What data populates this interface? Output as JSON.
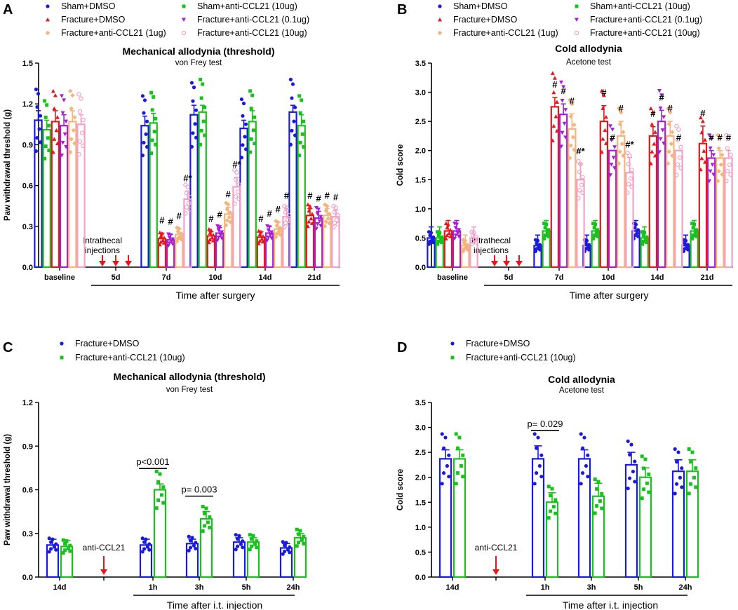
{
  "colors": {
    "sham_dmso": "#1a1adf",
    "fracture_dmso": "#e8151b",
    "sham_anti": "#18c21c",
    "fracture_anti_01": "#a51ed6",
    "fracture_anti_1": "#f5b47a",
    "fracture_anti_10": "#f2a0c8",
    "arrow": "#e8151b"
  },
  "chart_data": [
    {
      "panel": "A",
      "type": "bar",
      "title": "Mechanical allodynia (threshold)",
      "subtitle": "von Frey test",
      "ylabel": "Paw withdrawal threshold (g)",
      "xlabel": "Time after surgery",
      "ylim": [
        0,
        1.5
      ],
      "yticks": [
        0.0,
        0.3,
        0.6,
        0.9,
        1.2,
        1.5
      ],
      "ytick_labels": [
        "0.0",
        "0.3",
        "0.6",
        "0.9",
        "1.2",
        "1.5"
      ],
      "categories": [
        "baseline",
        "5d",
        "7d",
        "10d",
        "14d",
        "21d"
      ],
      "annotation": "Intrathecal injections",
      "legend": [
        "Sham+DMSO",
        "Fracture+DMSO",
        "Fracture+anti-CCL21 (1ug)",
        "Sham+anti-CCL21 (10ug)",
        "Fracture+anti-CCL21 (0.1ug)",
        "Fracture+anti-CCL21 (10ug)"
      ],
      "series": [
        {
          "name": "Sham+DMSO",
          "color_key": "sham_dmso",
          "values": [
            1.08,
            null,
            1.04,
            1.12,
            1.02,
            1.14
          ],
          "errors": [
            0.07,
            null,
            0.07,
            0.07,
            0.06,
            0.05
          ]
        },
        {
          "name": "Sham+anti-CCL21 (10ug)",
          "color_key": "sham_anti",
          "values": [
            1.01,
            null,
            1.06,
            1.14,
            1.07,
            1.04
          ],
          "errors": [
            0.07,
            null,
            0.07,
            0.05,
            0.08,
            0.08
          ]
        },
        {
          "name": "Fracture+DMSO",
          "color_key": "fracture_dmso",
          "values": [
            1.07,
            null,
            0.21,
            0.23,
            0.22,
            0.38
          ],
          "errors": [
            0.08,
            null,
            0.04,
            0.03,
            0.04,
            0.05
          ]
        },
        {
          "name": "Fracture+anti-CCL21 (0.1ug)",
          "color_key": "fracture_anti_01",
          "values": [
            1.04,
            null,
            0.2,
            0.25,
            0.25,
            0.36
          ],
          "errors": [
            0.08,
            null,
            0.04,
            0.04,
            0.05,
            0.05
          ]
        },
        {
          "name": "Fracture+anti-CCL21 (1ug)",
          "color_key": "fracture_anti_1",
          "values": [
            1.07,
            null,
            0.24,
            0.39,
            0.28,
            0.38
          ],
          "errors": [
            0.08,
            null,
            0.04,
            0.05,
            0.05,
            0.05
          ]
        },
        {
          "name": "Fracture+anti-CCL21 (10ug)",
          "color_key": "fracture_anti_10",
          "values": [
            1.05,
            null,
            0.5,
            0.59,
            0.37,
            0.37
          ],
          "errors": [
            0.07,
            null,
            0.06,
            0.07,
            0.06,
            0.05
          ]
        }
      ],
      "significance": [
        {
          "category": "7d",
          "marks": [
            "",
            "",
            "#",
            "#",
            "#",
            "#*"
          ]
        },
        {
          "category": "10d",
          "marks": [
            "",
            "",
            "#",
            "#",
            "#",
            "#*"
          ]
        },
        {
          "category": "14d",
          "marks": [
            "",
            "",
            "#",
            "#",
            "#",
            "#"
          ]
        },
        {
          "category": "21d",
          "marks": [
            "",
            "",
            "#",
            "#",
            "#",
            "#"
          ]
        }
      ]
    },
    {
      "panel": "B",
      "type": "bar",
      "title": "Cold allodynia",
      "subtitle": "Acetone test",
      "ylabel": "Cold score",
      "xlabel": "Time after surgery",
      "ylim": [
        0,
        3.5
      ],
      "yticks": [
        0.0,
        0.5,
        1.0,
        1.5,
        2.0,
        2.5,
        3.0,
        3.5
      ],
      "ytick_labels": [
        "0.0",
        "0.5",
        "1.0",
        "1.5",
        "2.0",
        "2.5",
        "3.0",
        "3.5"
      ],
      "categories": [
        "baseline",
        "5d",
        "7d",
        "10d",
        "14d",
        "21d"
      ],
      "annotation": "Intrathecal injections",
      "legend": [
        "Sham+DMSO",
        "Fracture+DMSO",
        "Fracture+anti-CCL21 (1ug)",
        "Sham+anti-CCL21 (10ug)",
        "Fracture+anti-CCL21 (0.1ug)",
        "Fracture+anti-CCL21 (10ug)"
      ],
      "series": [
        {
          "name": "Sham+DMSO",
          "color_key": "sham_dmso",
          "values": [
            0.5,
            null,
            0.37,
            0.37,
            0.62,
            0.37
          ],
          "errors": [
            0.19,
            null,
            0.18,
            0.18,
            0.18,
            0.18
          ]
        },
        {
          "name": "Sham+anti-CCL21 (10ug)",
          "color_key": "sham_anti",
          "values": [
            0.5,
            null,
            0.62,
            0.62,
            0.5,
            0.62
          ],
          "errors": [
            0.19,
            null,
            0.18,
            0.18,
            0.19,
            0.18
          ]
        },
        {
          "name": "Fracture+DMSO",
          "color_key": "fracture_dmso",
          "values": [
            0.62,
            null,
            2.75,
            2.5,
            2.25,
            2.12
          ],
          "errors": [
            0.18,
            null,
            0.16,
            0.27,
            0.16,
            0.3
          ]
        },
        {
          "name": "Fracture+anti-CCL21 (0.1ug)",
          "color_key": "fracture_anti_01",
          "values": [
            0.62,
            null,
            2.62,
            2.0,
            2.5,
            1.87
          ],
          "errors": [
            0.18,
            null,
            0.18,
            0.0,
            0.19,
            0.13
          ]
        },
        {
          "name": "Fracture+anti-CCL21 (1ug)",
          "color_key": "fracture_anti_1",
          "values": [
            0.37,
            null,
            2.37,
            2.25,
            2.25,
            1.87
          ],
          "errors": [
            0.18,
            null,
            0.26,
            0.25,
            0.25,
            0.13
          ]
        },
        {
          "name": "Fracture+anti-CCL21 (10ug)",
          "color_key": "fracture_anti_10",
          "values": [
            0.5,
            null,
            1.5,
            1.62,
            2.0,
            1.87
          ],
          "errors": [
            0.19,
            null,
            0.27,
            0.26,
            0.0,
            0.13
          ]
        }
      ],
      "significance": [
        {
          "category": "7d",
          "marks": [
            "",
            "",
            "#",
            "#",
            "#",
            "#*"
          ]
        },
        {
          "category": "10d",
          "marks": [
            "",
            "",
            "#",
            "#",
            "#",
            "#*"
          ]
        },
        {
          "category": "14d",
          "marks": [
            "",
            "",
            "#",
            "#",
            "#",
            "#"
          ]
        },
        {
          "category": "21d",
          "marks": [
            "",
            "",
            "#",
            "#",
            "#",
            "#"
          ]
        }
      ]
    },
    {
      "panel": "C",
      "type": "bar",
      "title": "Mechanical allodynia (threshold)",
      "subtitle": "von Frey test",
      "ylabel": "Paw withdrawal threshold (g)",
      "xlabel": "Time after i.t. injection",
      "ylim": [
        0,
        1.2
      ],
      "yticks": [
        0.0,
        0.3,
        0.6,
        0.9,
        1.2
      ],
      "ytick_labels": [
        "0.0",
        "0.3",
        "0.6",
        "0.9",
        "1.2"
      ],
      "categories": [
        "14d",
        "",
        "1h",
        "3h",
        "5h",
        "24h"
      ],
      "annotation": "anti-CCL21",
      "legend": [
        "Fracture+DMSO",
        "Fracture+anti-CCL21 (10ug)"
      ],
      "series": [
        {
          "name": "Fracture+DMSO",
          "color_key": "sham_dmso",
          "values": [
            0.22,
            null,
            0.22,
            0.23,
            0.24,
            0.2
          ],
          "errors": [
            0.04,
            null,
            0.04,
            0.03,
            0.03,
            0.03
          ]
        },
        {
          "name": "Fracture+anti-CCL21 (10ug)",
          "color_key": "sham_anti",
          "values": [
            0.21,
            null,
            0.6,
            0.4,
            0.24,
            0.27
          ],
          "errors": [
            0.04,
            null,
            0.04,
            0.05,
            0.03,
            0.03
          ]
        }
      ],
      "pvalues": [
        {
          "category": "1h",
          "label": "p<0.001"
        },
        {
          "category": "3h",
          "label": "p= 0.003"
        }
      ]
    },
    {
      "panel": "D",
      "type": "bar",
      "title": "Cold allodynia",
      "subtitle": "Acetone test",
      "ylabel": "Cold score",
      "xlabel": "Time after i.t. injection",
      "ylim": [
        0,
        3.5
      ],
      "yticks": [
        0.0,
        0.5,
        1.0,
        1.5,
        2.0,
        2.5,
        3.0,
        3.5
      ],
      "ytick_labels": [
        "0.0",
        "0.5",
        "1.0",
        "1.5",
        "2.0",
        "2.5",
        "3.0",
        "3.5"
      ],
      "categories": [
        "14d",
        "",
        "1h",
        "3h",
        "5h",
        "24h"
      ],
      "annotation": "anti-CCL21",
      "legend": [
        "Fracture+DMSO",
        "Fracture+anti-CCL21 (10ug)"
      ],
      "series": [
        {
          "name": "Fracture+DMSO",
          "color_key": "sham_dmso",
          "values": [
            2.37,
            null,
            2.37,
            2.37,
            2.25,
            2.12
          ],
          "errors": [
            0.18,
            null,
            0.26,
            0.18,
            0.25,
            0.23
          ]
        },
        {
          "name": "Fracture+anti-CCL21 (10ug)",
          "color_key": "sham_anti",
          "values": [
            2.37,
            null,
            1.5,
            1.62,
            2.0,
            2.12
          ],
          "errors": [
            0.18,
            null,
            0.19,
            0.26,
            0.19,
            0.23
          ]
        }
      ],
      "pvalues": [
        {
          "category": "1h",
          "label": "p= 0.029"
        }
      ]
    }
  ]
}
